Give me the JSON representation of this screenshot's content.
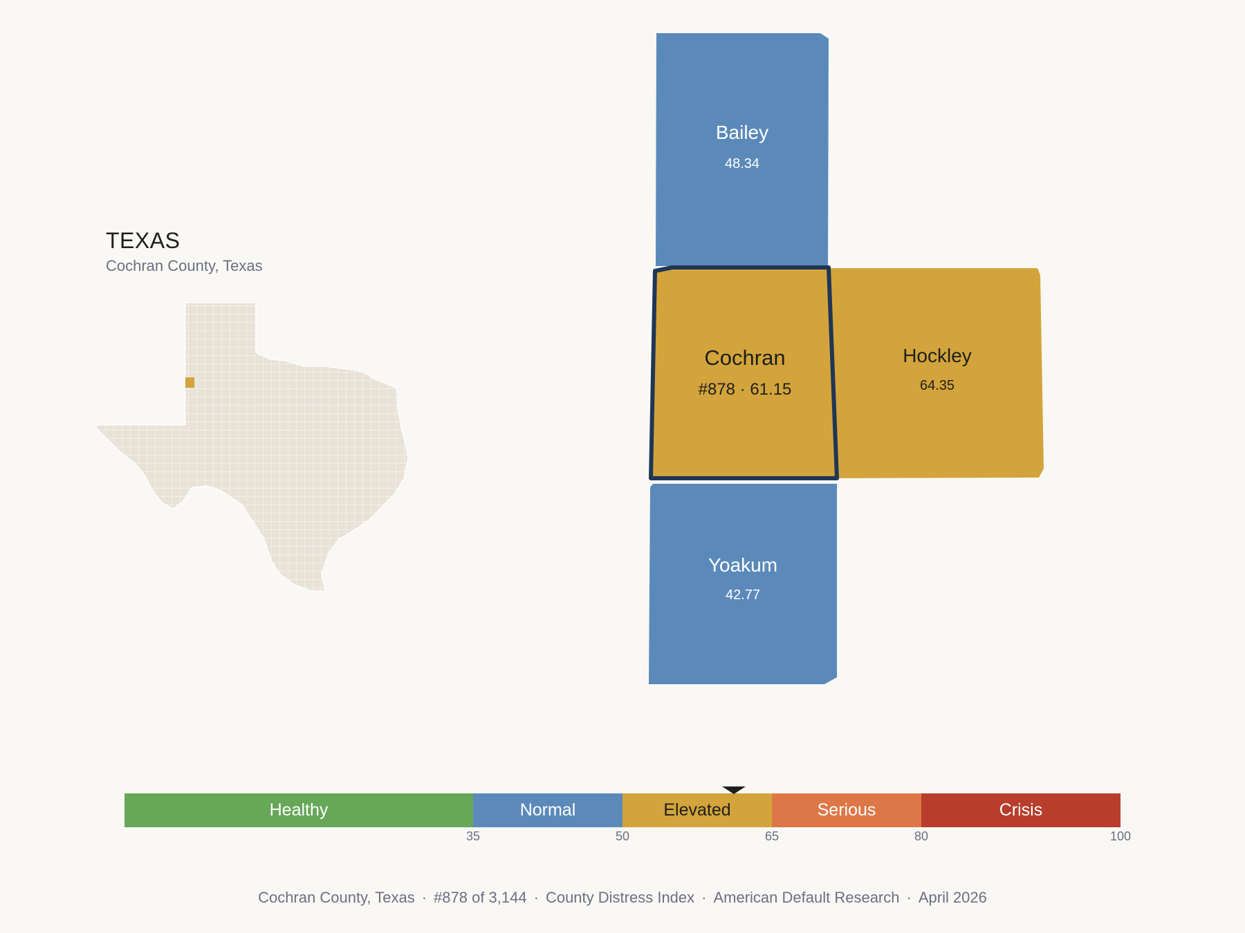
{
  "state": {
    "title": "TEXAS",
    "subtitle": "Cochran County, Texas"
  },
  "colors": {
    "normal": "#5b8aba",
    "elevated": "#d3a43b",
    "healthy": "#67a758",
    "serious": "#de7747",
    "crisis": "#b83d2c",
    "outline": "#1f3656",
    "state_fill": "#e8e2d7"
  },
  "counties": [
    {
      "name": "Bailey",
      "value": "48.34",
      "category": "normal"
    },
    {
      "name": "Cochran",
      "value": "#878 · 61.15",
      "category": "elevated",
      "highlight": true
    },
    {
      "name": "Hockley",
      "value": "64.35",
      "category": "elevated"
    },
    {
      "name": "Yoakum",
      "value": "42.77",
      "category": "normal"
    }
  ],
  "legend": {
    "segments": [
      {
        "label": "Healthy",
        "from": 0,
        "to": 35
      },
      {
        "label": "Normal",
        "from": 35,
        "to": 50
      },
      {
        "label": "Elevated",
        "from": 50,
        "to": 65
      },
      {
        "label": "Serious",
        "from": 65,
        "to": 80
      },
      {
        "label": "Crisis",
        "from": 80,
        "to": 100
      }
    ],
    "ticks": [
      "35",
      "50",
      "65",
      "80",
      "100"
    ],
    "marker_value": 61.15
  },
  "footer": {
    "county": "Cochran County, Texas",
    "rank": "#878 of 3,144",
    "index": "County Distress Index",
    "org": "American Default Research",
    "date": "April 2026"
  }
}
